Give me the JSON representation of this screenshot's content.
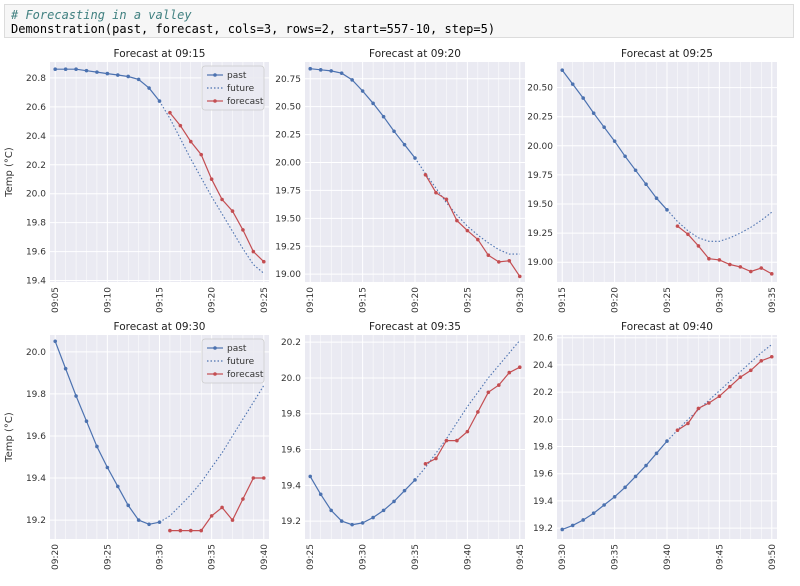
{
  "code": {
    "comment": "# Forecasting in a valley",
    "line": "Demonstration(past, forecast, cols=3, rows=2, start=557-10, step=5)"
  },
  "colors": {
    "past": "#4c72b0",
    "future": "#4c72b0",
    "forecast": "#c44e52",
    "background": "#eaeaf2",
    "grid": "#ffffff"
  },
  "chart_data": [
    {
      "type": "line",
      "title": "Forecast at 09:15",
      "ylabel": "Temp (°C)",
      "x_ticks": [
        "09:05",
        "09:10",
        "09:15",
        "09:20",
        "09:25"
      ],
      "x_tick_minutes": [
        0,
        5,
        10,
        15,
        20
      ],
      "y_ticks": [
        "19.4",
        "19.6",
        "19.8",
        "20.0",
        "20.2",
        "20.4",
        "20.6",
        "20.8"
      ],
      "ylim": [
        19.39,
        20.91
      ],
      "xlim": [
        -0.5,
        20.5
      ],
      "legend": [
        "past",
        "future",
        "forecast"
      ],
      "legend_position": "top-right",
      "series": [
        {
          "name": "past",
          "style": "solid-marker",
          "x": [
            0,
            1,
            2,
            3,
            4,
            5,
            6,
            7,
            8,
            9,
            10
          ],
          "y": [
            20.86,
            20.86,
            20.86,
            20.85,
            20.84,
            20.83,
            20.82,
            20.81,
            20.79,
            20.73,
            20.64
          ]
        },
        {
          "name": "future",
          "style": "dotted",
          "x": [
            10,
            11,
            12,
            13,
            14,
            15,
            16,
            17,
            18,
            19,
            20
          ],
          "y": [
            20.64,
            20.52,
            20.38,
            20.24,
            20.11,
            19.98,
            19.86,
            19.74,
            19.62,
            19.51,
            19.45
          ]
        },
        {
          "name": "forecast",
          "style": "solid-marker",
          "x": [
            11,
            12,
            13,
            14,
            15,
            16,
            17,
            18,
            19,
            20
          ],
          "y": [
            20.56,
            20.47,
            20.36,
            20.27,
            20.1,
            19.96,
            19.88,
            19.75,
            19.6,
            19.53
          ]
        }
      ]
    },
    {
      "type": "line",
      "title": "Forecast at 09:20",
      "ylabel": "",
      "x_ticks": [
        "09:10",
        "09:15",
        "09:20",
        "09:25",
        "09:30"
      ],
      "x_tick_minutes": [
        0,
        5,
        10,
        15,
        20
      ],
      "y_ticks": [
        "19.00",
        "19.25",
        "19.50",
        "19.75",
        "20.00",
        "20.25",
        "20.50",
        "20.75"
      ],
      "ylim": [
        18.93,
        20.9
      ],
      "xlim": [
        -0.5,
        20.5
      ],
      "series": [
        {
          "name": "past",
          "style": "solid-marker",
          "x": [
            0,
            1,
            2,
            3,
            4,
            5,
            6,
            7,
            8,
            9,
            10
          ],
          "y": [
            20.84,
            20.83,
            20.82,
            20.8,
            20.74,
            20.64,
            20.53,
            20.41,
            20.28,
            20.16,
            20.04
          ]
        },
        {
          "name": "future",
          "style": "dotted",
          "x": [
            10,
            11,
            12,
            13,
            14,
            15,
            16,
            17,
            18,
            19,
            20
          ],
          "y": [
            20.04,
            19.9,
            19.77,
            19.64,
            19.53,
            19.43,
            19.35,
            19.28,
            19.22,
            19.18,
            19.18
          ]
        },
        {
          "name": "forecast",
          "style": "solid-marker",
          "x": [
            11,
            12,
            13,
            14,
            15,
            16,
            17,
            18,
            19,
            20
          ],
          "y": [
            19.89,
            19.73,
            19.67,
            19.48,
            19.39,
            19.31,
            19.17,
            19.11,
            19.12,
            18.98
          ]
        }
      ]
    },
    {
      "type": "line",
      "title": "Forecast at 09:25",
      "ylabel": "",
      "x_ticks": [
        "09:15",
        "09:20",
        "09:25",
        "09:30",
        "09:35"
      ],
      "x_tick_minutes": [
        0,
        5,
        10,
        15,
        20
      ],
      "y_ticks": [
        "19.00",
        "19.25",
        "19.50",
        "19.75",
        "20.00",
        "20.25",
        "20.50"
      ],
      "ylim": [
        18.83,
        20.72
      ],
      "xlim": [
        -0.5,
        20.5
      ],
      "series": [
        {
          "name": "past",
          "style": "solid-marker",
          "x": [
            0,
            1,
            2,
            3,
            4,
            5,
            6,
            7,
            8,
            9,
            10
          ],
          "y": [
            20.65,
            20.53,
            20.41,
            20.28,
            20.16,
            20.04,
            19.91,
            19.79,
            19.67,
            19.55,
            19.45
          ]
        },
        {
          "name": "future",
          "style": "dotted",
          "x": [
            10,
            11,
            12,
            13,
            14,
            15,
            16,
            17,
            18,
            19,
            20
          ],
          "y": [
            19.45,
            19.35,
            19.27,
            19.21,
            19.18,
            19.18,
            19.21,
            19.25,
            19.3,
            19.36,
            19.43
          ]
        },
        {
          "name": "forecast",
          "style": "solid-marker",
          "x": [
            11,
            12,
            13,
            14,
            15,
            16,
            17,
            18,
            19,
            20
          ],
          "y": [
            19.31,
            19.24,
            19.14,
            19.03,
            19.02,
            18.98,
            18.96,
            18.92,
            18.95,
            18.9
          ]
        }
      ]
    },
    {
      "type": "line",
      "title": "Forecast at 09:30",
      "ylabel": "Temp (°C)",
      "x_ticks": [
        "09:20",
        "09:25",
        "09:30",
        "09:35",
        "09:40"
      ],
      "x_tick_minutes": [
        0,
        5,
        10,
        15,
        20
      ],
      "y_ticks": [
        "19.2",
        "19.4",
        "19.6",
        "19.8",
        "20.0"
      ],
      "ylim": [
        19.11,
        20.08
      ],
      "xlim": [
        -0.5,
        20.5
      ],
      "legend": [
        "past",
        "future",
        "forecast"
      ],
      "legend_position": "top-right",
      "series": [
        {
          "name": "past",
          "style": "solid-marker",
          "x": [
            0,
            1,
            2,
            3,
            4,
            5,
            6,
            7,
            8,
            9,
            10
          ],
          "y": [
            20.05,
            19.92,
            19.79,
            19.67,
            19.55,
            19.45,
            19.36,
            19.27,
            19.2,
            19.18,
            19.19
          ]
        },
        {
          "name": "future",
          "style": "dotted",
          "x": [
            10,
            11,
            12,
            13,
            14,
            15,
            16,
            17,
            18,
            19,
            20
          ],
          "y": [
            19.19,
            19.22,
            19.27,
            19.32,
            19.38,
            19.45,
            19.52,
            19.6,
            19.68,
            19.76,
            19.84
          ]
        },
        {
          "name": "forecast",
          "style": "solid-marker",
          "x": [
            11,
            12,
            13,
            14,
            15,
            16,
            17,
            18,
            19,
            20
          ],
          "y": [
            19.15,
            19.15,
            19.15,
            19.15,
            19.22,
            19.26,
            19.2,
            19.3,
            19.4,
            19.4
          ]
        }
      ]
    },
    {
      "type": "line",
      "title": "Forecast at 09:35",
      "ylabel": "",
      "x_ticks": [
        "09:25",
        "09:30",
        "09:35",
        "09:40",
        "09:45"
      ],
      "x_tick_minutes": [
        0,
        5,
        10,
        15,
        20
      ],
      "y_ticks": [
        "19.2",
        "19.4",
        "19.6",
        "19.8",
        "20.0",
        "20.2"
      ],
      "ylim": [
        19.1,
        20.24
      ],
      "xlim": [
        -0.5,
        20.5
      ],
      "series": [
        {
          "name": "past",
          "style": "solid-marker",
          "x": [
            0,
            1,
            2,
            3,
            4,
            5,
            6,
            7,
            8,
            9,
            10
          ],
          "y": [
            19.45,
            19.35,
            19.26,
            19.2,
            19.18,
            19.19,
            19.22,
            19.26,
            19.31,
            19.37,
            19.43
          ]
        },
        {
          "name": "future",
          "style": "dotted",
          "x": [
            10,
            11,
            12,
            13,
            14,
            15,
            16,
            17,
            18,
            19,
            20
          ],
          "y": [
            19.43,
            19.5,
            19.58,
            19.66,
            19.75,
            19.84,
            19.92,
            20.0,
            20.07,
            20.14,
            20.21
          ]
        },
        {
          "name": "forecast",
          "style": "solid-marker",
          "x": [
            11,
            12,
            13,
            14,
            15,
            16,
            17,
            18,
            19,
            20
          ],
          "y": [
            19.52,
            19.55,
            19.65,
            19.65,
            19.7,
            19.81,
            19.92,
            19.96,
            20.03,
            20.06
          ]
        }
      ]
    },
    {
      "type": "line",
      "title": "Forecast at 09:40",
      "ylabel": "",
      "x_ticks": [
        "09:30",
        "09:35",
        "09:40",
        "09:45",
        "09:50"
      ],
      "x_tick_minutes": [
        0,
        5,
        10,
        15,
        20
      ],
      "y_ticks": [
        "19.2",
        "19.4",
        "19.6",
        "19.8",
        "20.0",
        "20.2",
        "20.4",
        "20.6"
      ],
      "ylim": [
        19.12,
        20.62
      ],
      "xlim": [
        -0.5,
        20.5
      ],
      "series": [
        {
          "name": "past",
          "style": "solid-marker",
          "x": [
            0,
            1,
            2,
            3,
            4,
            5,
            6,
            7,
            8,
            9,
            10
          ],
          "y": [
            19.19,
            19.22,
            19.26,
            19.31,
            19.37,
            19.43,
            19.5,
            19.58,
            19.66,
            19.75,
            19.84
          ]
        },
        {
          "name": "future",
          "style": "dotted",
          "x": [
            10,
            11,
            12,
            13,
            14,
            15,
            16,
            17,
            18,
            19,
            20
          ],
          "y": [
            19.84,
            19.92,
            20.0,
            20.07,
            20.14,
            20.21,
            20.28,
            20.35,
            20.42,
            20.49,
            20.55
          ]
        },
        {
          "name": "forecast",
          "style": "solid-marker",
          "x": [
            11,
            12,
            13,
            14,
            15,
            16,
            17,
            18,
            19,
            20
          ],
          "y": [
            19.92,
            19.97,
            20.08,
            20.12,
            20.17,
            20.24,
            20.31,
            20.36,
            20.43,
            20.46
          ]
        }
      ]
    }
  ]
}
